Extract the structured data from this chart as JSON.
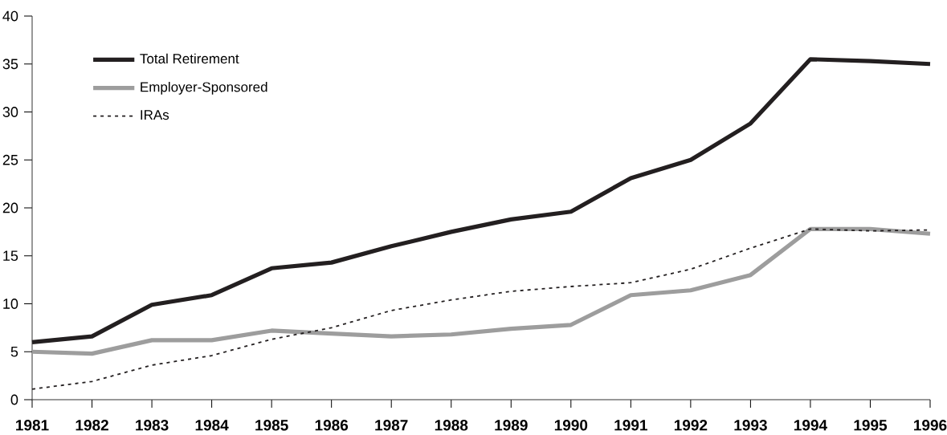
{
  "chart_data": {
    "type": "line",
    "categories": [
      "1981",
      "1982",
      "1983",
      "1984",
      "1985",
      "1986",
      "1987",
      "1988",
      "1989",
      "1990",
      "1991",
      "1992",
      "1993",
      "1994",
      "1995",
      "1996"
    ],
    "series": [
      {
        "name": "Total Retirement",
        "color": "#231f20",
        "line_style": "solid",
        "values": [
          6.0,
          6.6,
          9.9,
          10.9,
          13.7,
          14.3,
          16.0,
          17.5,
          18.8,
          19.6,
          23.1,
          25.0,
          28.8,
          35.5,
          35.3,
          35.0
        ]
      },
      {
        "name": "Employer-Sponsored",
        "color": "#9d9d9d",
        "line_style": "solid",
        "values": [
          5.0,
          4.8,
          6.2,
          6.2,
          7.2,
          6.9,
          6.6,
          6.8,
          7.4,
          7.8,
          10.9,
          11.4,
          13.0,
          17.8,
          17.8,
          17.3
        ]
      },
      {
        "name": "IRAs",
        "color": "#231f20",
        "line_style": "dotted",
        "values": [
          1.1,
          1.9,
          3.6,
          4.6,
          6.3,
          7.5,
          9.3,
          10.4,
          11.3,
          11.8,
          12.2,
          13.6,
          15.8,
          17.8,
          17.6,
          17.7
        ]
      }
    ],
    "ylim": [
      0,
      40
    ],
    "yticks": [
      0,
      5,
      10,
      15,
      20,
      25,
      30,
      35,
      40
    ],
    "grid": false,
    "legend": "top left",
    "marker": "none"
  }
}
